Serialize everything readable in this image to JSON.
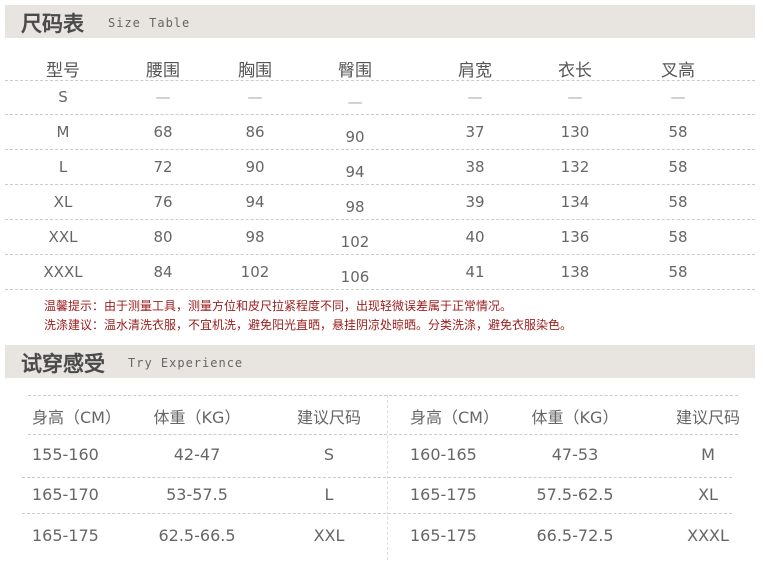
{
  "size_section": {
    "title": "尺码表",
    "subtitle": "Size Table"
  },
  "size_table": {
    "headers": [
      "型号",
      "腰围",
      "胸围",
      "臀围",
      "肩宽",
      "衣长",
      "叉高"
    ],
    "rows": [
      [
        "S",
        "—",
        "—",
        "—",
        "—",
        "—",
        "—"
      ],
      [
        "M",
        "68",
        "86",
        "90",
        "37",
        "130",
        "58"
      ],
      [
        "L",
        "72",
        "90",
        "94",
        "38",
        "132",
        "58"
      ],
      [
        "XL",
        "76",
        "94",
        "98",
        "39",
        "134",
        "58"
      ],
      [
        "XXL",
        "80",
        "98",
        "102",
        "40",
        "136",
        "58"
      ],
      [
        "XXXL",
        "84",
        "102",
        "106",
        "41",
        "138",
        "58"
      ]
    ]
  },
  "notes": [
    "温馨提示：由于测量工具，测量方位和皮尺拉紧程度不同，出现轻微误差属于正常情况。",
    "洗涤建议：温水清洗衣服，不宜机洗，避免阳光直晒，悬挂阴凉处晾晒。分类洗涤，避免衣服染色。"
  ],
  "fit_section": {
    "title": "试穿感受",
    "subtitle": "Try Experience"
  },
  "fit_table": {
    "headers": [
      "身高（CM）",
      "体重（KG）",
      "建议尺码",
      "身高（CM）",
      "体重（KG）",
      "建议尺码"
    ],
    "rows": [
      [
        "155-160",
        "42-47",
        "S",
        "160-165",
        "47-53",
        "M"
      ],
      [
        "165-170",
        "53-57.5",
        "L",
        "165-175",
        "57.5-62.5",
        "XL"
      ],
      [
        "165-175",
        "62.5-66.5",
        "XXL",
        "165-175",
        "66.5-72.5",
        "XXXL"
      ]
    ]
  },
  "colors": {
    "header_bar": "#e8e4df",
    "note_text": "#9b1c1c"
  }
}
